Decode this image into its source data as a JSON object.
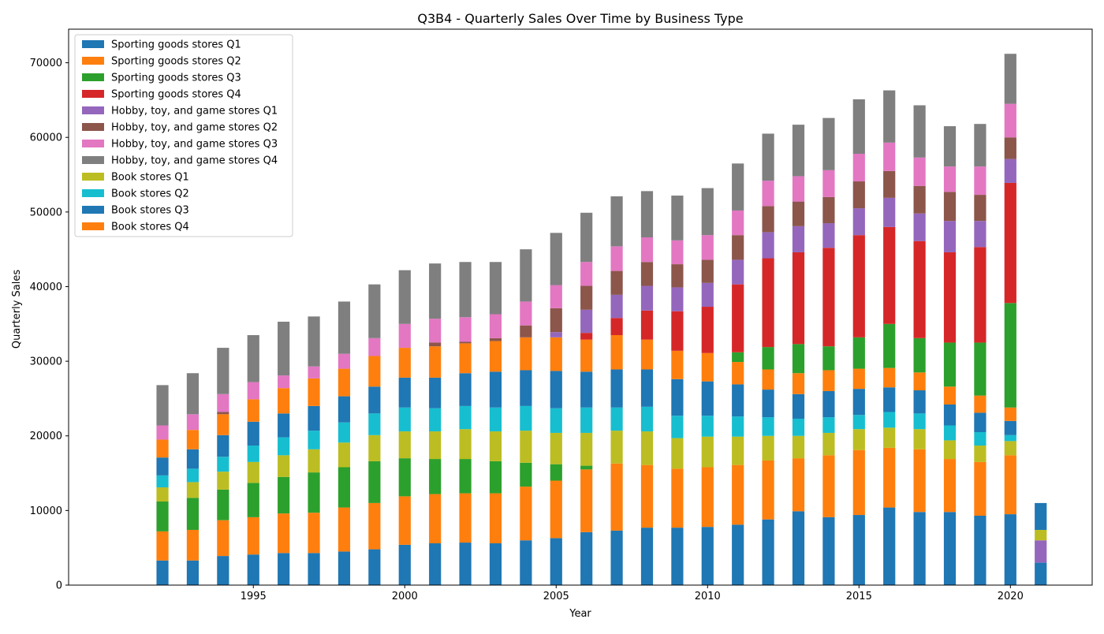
{
  "chart_data": {
    "type": "bar",
    "stacked": true,
    "title": "Q3B4 - Quarterly Sales Over Time by Business Type",
    "xlabel": "Year",
    "ylabel": "Quarterly Sales",
    "xlim": [
      1988.9,
      2022.7
    ],
    "ylim": [
      0,
      74500
    ],
    "x_ticks": [
      1995,
      2000,
      2005,
      2010,
      2015,
      2020
    ],
    "y_ticks": [
      0,
      10000,
      20000,
      30000,
      40000,
      50000,
      60000,
      70000
    ],
    "grid": false,
    "legend_position": "top-left",
    "x": [
      1992,
      1993,
      1994,
      1995,
      1996,
      1997,
      1998,
      1999,
      2000,
      2001,
      2002,
      2003,
      2004,
      2005,
      2006,
      2007,
      2008,
      2009,
      2010,
      2011,
      2012,
      2013,
      2014,
      2015,
      2016,
      2017,
      2018,
      2019,
      2020,
      2021
    ],
    "series": [
      {
        "name": "Sporting goods stores Q1",
        "color": "#1f77b4",
        "values": [
          3300,
          3300,
          3900,
          4100,
          4300,
          4300,
          4500,
          4800,
          5400,
          5600,
          5700,
          5600,
          6000,
          6300,
          7100,
          7300,
          7700,
          7700,
          7800,
          8100,
          8800,
          9900,
          9100,
          9400,
          10400,
          9800,
          9800,
          9300,
          9500,
          3000
        ]
      },
      {
        "name": "Sporting goods stores Q2",
        "color": "#ff7f0e",
        "values": [
          3900,
          4100,
          4800,
          5000,
          5300,
          5400,
          5900,
          6200,
          6500,
          6600,
          6600,
          6700,
          7200,
          7700,
          8400,
          9000,
          8400,
          7900,
          8000,
          8000,
          7900,
          7100,
          8300,
          8700,
          8000,
          8400,
          7100,
          7200,
          7900,
          0
        ]
      },
      {
        "name": "Sporting goods stores Q3",
        "color": "#2ca02c",
        "values": [
          4000,
          4300,
          4100,
          4600,
          4900,
          5400,
          5400,
          5600,
          5100,
          4700,
          4600,
          4300,
          3200,
          2200,
          500,
          0,
          0,
          0,
          0,
          0,
          0,
          0,
          0,
          0,
          0,
          0,
          0,
          0,
          0,
          0
        ]
      },
      {
        "name": "Sporting goods stores Q4",
        "color": "#d62728",
        "values": [
          0,
          0,
          0,
          0,
          0,
          0,
          0,
          0,
          0,
          0,
          0,
          0,
          0,
          0,
          0,
          0,
          0,
          0,
          0,
          0,
          0,
          0,
          0,
          0,
          0,
          0,
          0,
          0,
          0,
          0
        ]
      },
      {
        "name": "Hobby, toy, and game stores Q1",
        "color": "#9467bd",
        "values": [
          0,
          0,
          0,
          0,
          0,
          0,
          0,
          0,
          0,
          0,
          0,
          0,
          0,
          0,
          0,
          0,
          0,
          0,
          0,
          0,
          0,
          0,
          0,
          0,
          0,
          0,
          0,
          0,
          0,
          3000
        ]
      },
      {
        "name": "Hobby, toy, and game stores Q2",
        "color": "#8c564b",
        "values": [
          0,
          0,
          0,
          0,
          0,
          0,
          0,
          0,
          0,
          0,
          0,
          0,
          0,
          0,
          0,
          0,
          0,
          0,
          0,
          0,
          0,
          0,
          0,
          0,
          0,
          0,
          0,
          0,
          0,
          0
        ]
      },
      {
        "name": "Hobby, toy, and game stores Q3",
        "color": "#e377c2",
        "values": [
          0,
          0,
          0,
          0,
          0,
          0,
          0,
          0,
          0,
          0,
          0,
          0,
          0,
          0,
          0,
          0,
          0,
          0,
          0,
          0,
          0,
          0,
          0,
          0,
          0,
          0,
          0,
          0,
          0,
          0
        ]
      },
      {
        "name": "Hobby, toy, and game stores Q4",
        "color": "#7f7f7f",
        "values": [
          0,
          0,
          0,
          0,
          0,
          0,
          0,
          0,
          0,
          0,
          0,
          0,
          0,
          0,
          0,
          0,
          0,
          0,
          0,
          0,
          0,
          0,
          0,
          0,
          0,
          0,
          0,
          0,
          0,
          0
        ]
      },
      {
        "name": "Book stores Q1",
        "color": "#bcbd22",
        "values": [
          1900,
          2100,
          2400,
          2800,
          2900,
          3100,
          3300,
          3500,
          3600,
          3700,
          4000,
          4000,
          4300,
          4200,
          4400,
          4400,
          4500,
          4100,
          4100,
          3800,
          3300,
          3000,
          3000,
          2800,
          2700,
          2700,
          2500,
          2200,
          1900,
          1400
        ]
      },
      {
        "name": "Book stores Q2",
        "color": "#17becf",
        "values": [
          1600,
          1800,
          2000,
          2200,
          2400,
          2500,
          2700,
          2900,
          3200,
          3100,
          3100,
          3200,
          3300,
          3300,
          3400,
          3100,
          3300,
          3000,
          2800,
          2700,
          2500,
          2300,
          2100,
          1900,
          2100,
          2100,
          2000,
          1800,
          800,
          0
        ]
      },
      {
        "name": "Book stores Q3",
        "color": "#1f77b4",
        "values": [
          2400,
          2600,
          2900,
          3200,
          3200,
          3300,
          3500,
          3600,
          4000,
          4100,
          4400,
          4800,
          4800,
          5000,
          4800,
          5100,
          5000,
          4900,
          4600,
          4300,
          3700,
          3300,
          3500,
          3500,
          3300,
          3100,
          2800,
          2600,
          1900,
          3600
        ]
      },
      {
        "name": "Book stores Q4",
        "color": "#ff7f0e",
        "values": [
          2400,
          2600,
          2800,
          3000,
          3400,
          3700,
          3700,
          4100,
          4000,
          4200,
          4000,
          4100,
          4400,
          4500,
          4300,
          4600,
          4000,
          3800,
          3800,
          3000,
          2700,
          2800,
          2800,
          2700,
          2600,
          2400,
          2400,
          2300,
          1800,
          0
        ]
      },
      {
        "name": "Sporting goods stores Q3",
        "color": "#2ca02c",
        "values": [
          0,
          0,
          0,
          0,
          0,
          0,
          0,
          0,
          0,
          0,
          0,
          0,
          0,
          0,
          0,
          0,
          0,
          0,
          0,
          1300,
          3000,
          3900,
          3200,
          4200,
          5900,
          4600,
          5900,
          7100,
          14000,
          0
        ]
      },
      {
        "name": "Sporting goods stores Q4",
        "color": "#d62728",
        "values": [
          0,
          0,
          0,
          0,
          0,
          0,
          0,
          0,
          0,
          0,
          0,
          0,
          0,
          0,
          900,
          2300,
          3900,
          5300,
          6200,
          9100,
          11900,
          12300,
          13200,
          13700,
          13000,
          13000,
          12100,
          12800,
          16100,
          0
        ]
      },
      {
        "name": "Hobby, toy, and game stores Q1",
        "color": "#9467bd",
        "values": [
          0,
          0,
          0,
          0,
          0,
          0,
          0,
          0,
          0,
          0,
          0,
          0,
          0,
          700,
          3100,
          3100,
          3300,
          3200,
          3200,
          3300,
          3500,
          3500,
          3300,
          3600,
          3900,
          3700,
          4200,
          3500,
          3200,
          0
        ]
      },
      {
        "name": "Hobby, toy, and game stores Q2",
        "color": "#8c564b",
        "values": [
          0,
          0,
          300,
          0,
          0,
          0,
          0,
          0,
          0,
          500,
          200,
          400,
          1600,
          3200,
          3200,
          3200,
          3200,
          3100,
          3100,
          3300,
          3500,
          3300,
          3500,
          3600,
          3600,
          3700,
          3900,
          3500,
          2900,
          0
        ]
      },
      {
        "name": "Hobby, toy, and game stores Q3",
        "color": "#e377c2",
        "values": [
          1900,
          2100,
          2400,
          2300,
          1700,
          1600,
          2000,
          2400,
          3200,
          3200,
          3300,
          3200,
          3200,
          3100,
          3200,
          3300,
          3300,
          3200,
          3300,
          3300,
          3400,
          3400,
          3600,
          3700,
          3800,
          3800,
          3400,
          3800,
          4500,
          0
        ]
      },
      {
        "name": "Hobby, toy, and game stores Q4",
        "color": "#7f7f7f",
        "values": [
          5400,
          5500,
          6200,
          6300,
          7200,
          6700,
          7000,
          7200,
          7200,
          7400,
          7400,
          7000,
          7000,
          7000,
          6600,
          6700,
          6200,
          6000,
          6300,
          6300,
          6300,
          6900,
          7000,
          7300,
          7000,
          7000,
          5400,
          5700,
          6700,
          0
        ]
      }
    ],
    "legend": [
      {
        "label": "Sporting goods stores Q1",
        "color": "#1f77b4"
      },
      {
        "label": "Sporting goods stores Q2",
        "color": "#ff7f0e"
      },
      {
        "label": "Sporting goods stores Q3",
        "color": "#2ca02c"
      },
      {
        "label": "Sporting goods stores Q4",
        "color": "#d62728"
      },
      {
        "label": "Hobby, toy, and game stores Q1",
        "color": "#9467bd"
      },
      {
        "label": "Hobby, toy, and game stores Q2",
        "color": "#8c564b"
      },
      {
        "label": "Hobby, toy, and game stores Q3",
        "color": "#e377c2"
      },
      {
        "label": "Hobby, toy, and game stores Q4",
        "color": "#7f7f7f"
      },
      {
        "label": "Book stores Q1",
        "color": "#bcbd22"
      },
      {
        "label": "Book stores Q2",
        "color": "#17becf"
      },
      {
        "label": "Book stores Q3",
        "color": "#1f77b4"
      },
      {
        "label": "Book stores Q4",
        "color": "#ff7f0e"
      }
    ]
  }
}
